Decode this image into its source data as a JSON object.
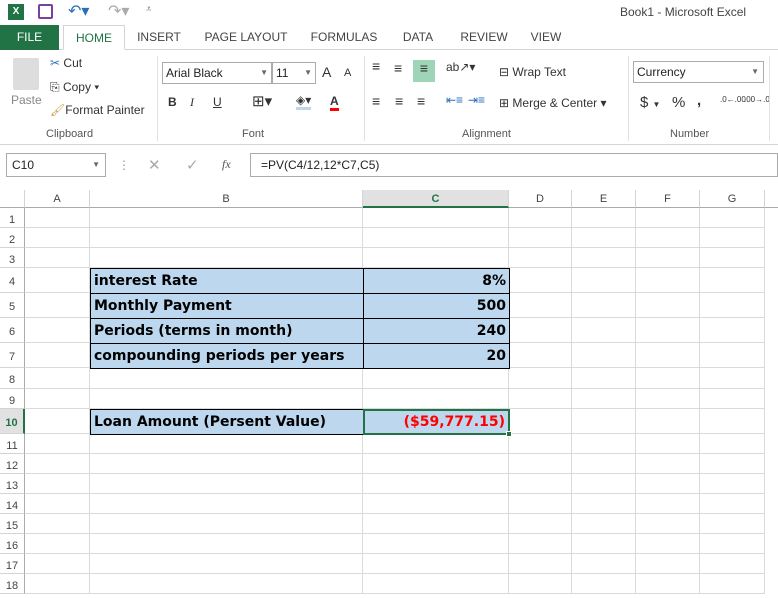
{
  "title": "Book1 - Microsoft Excel",
  "qat": {
    "icons": [
      "excel-logo-icon",
      "save-icon",
      "undo-icon",
      "redo-icon",
      "customize-icon"
    ]
  },
  "tabs": [
    "FILE",
    "HOME",
    "INSERT",
    "PAGE LAYOUT",
    "FORMULAS",
    "DATA",
    "REVIEW",
    "VIEW"
  ],
  "active_tab": "HOME",
  "ribbon": {
    "clipboard": {
      "paste": "Paste",
      "cut": "Cut",
      "copy": "Copy",
      "format_painter": "Format Painter",
      "group": "Clipboard"
    },
    "font": {
      "name": "Arial Black",
      "size": "11",
      "bold": "B",
      "italic": "I",
      "underline": "U",
      "grow": "A",
      "shrink": "A",
      "color_letter": "A",
      "group": "Font",
      "font_color": "#ff0000"
    },
    "alignment": {
      "wrap": "Wrap Text",
      "merge": "Merge & Center",
      "group": "Alignment"
    },
    "number": {
      "format": "Currency",
      "dollar": "$",
      "percent": "%",
      "comma": ",",
      "inc": ".0←.00",
      "dec": ".00→.0",
      "group": "Number"
    }
  },
  "formula_bar": {
    "name_box": "C10",
    "fx": "fx",
    "formula": "=PV(C4/12,12*C7,C5)"
  },
  "columns": [
    "A",
    "B",
    "C",
    "D",
    "E",
    "F",
    "G"
  ],
  "rows": [
    "1",
    "2",
    "3",
    "4",
    "5",
    "6",
    "7",
    "8",
    "9",
    "10",
    "11",
    "12",
    "13",
    "14",
    "15",
    "16",
    "17",
    "18"
  ],
  "selected_cell": "C10",
  "table": [
    {
      "row": "4",
      "label": "interest Rate",
      "value": "8%"
    },
    {
      "row": "5",
      "label": "Monthly Payment",
      "value": "500"
    },
    {
      "row": "6",
      "label": "Periods (terms in month)",
      "value": "240"
    },
    {
      "row": "7",
      "label": "compounding periods per years",
      "value": "20"
    }
  ],
  "result": {
    "row": "10",
    "label": "Loan Amount (Persent Value)",
    "value": "($59,777.15)",
    "value_color": "#ff0000"
  },
  "colors": {
    "accent": "#217346",
    "cell_fill": "#bdd7ee"
  }
}
